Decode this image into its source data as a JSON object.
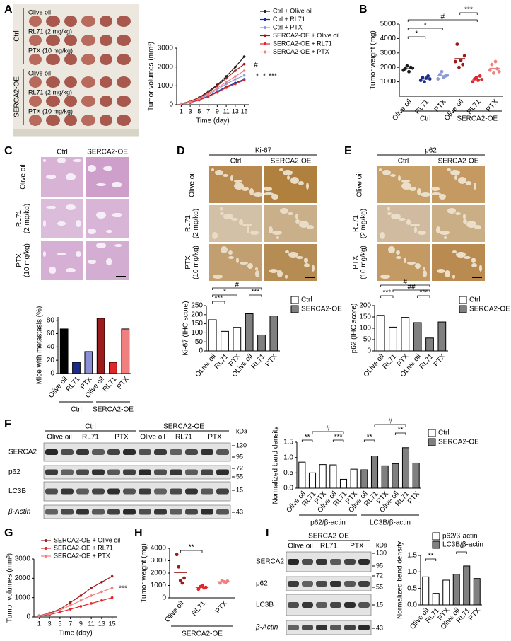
{
  "panel_labels": [
    "A",
    "B",
    "C",
    "D",
    "E",
    "F",
    "G",
    "H",
    "I"
  ],
  "figure_a": {
    "groups": [
      "Ctrl",
      "SERCA2-OE"
    ],
    "rows": [
      "Olive oil",
      "RL71 (2 mg/kg)",
      "PTX (10 mg/kg)"
    ]
  },
  "figure_c": {
    "columns": [
      "Ctrl",
      "SERCA2-OE"
    ],
    "rows": [
      [
        "Olive oil"
      ],
      [
        "RL71",
        "(2 mg/kg)"
      ],
      [
        "PTX",
        "(10 mg/kg)"
      ]
    ]
  },
  "figure_d": {
    "title": "Ki-67",
    "columns": [
      "Ctrl",
      "SERCA2-OE"
    ],
    "rows": [
      [
        "Olive oil"
      ],
      [
        "RL71",
        "(2 mg/kg)"
      ],
      [
        "PTX",
        "(10 mg/kg)"
      ]
    ]
  },
  "figure_e": {
    "title": "p62",
    "columns": [
      "Ctrl",
      "SERCA2-OE"
    ],
    "rows": [
      [
        "Olive oil"
      ],
      [
        "RL71",
        "(2 mg/kg)"
      ],
      [
        "PTX",
        "(10 mg/kg)"
      ]
    ]
  },
  "blot_f": {
    "groups": [
      "Ctrl",
      "SERCA2-OE"
    ],
    "lanes": [
      "Olive oil",
      "RL71",
      "PTX",
      "Olive oil",
      "RL71",
      "PTX"
    ],
    "proteins": [
      "SERCA2",
      "p62",
      "LC3B",
      "β-Actin"
    ],
    "unit": "kDa",
    "markers": [
      130,
      95,
      72,
      55,
      15,
      43
    ]
  },
  "blot_i": {
    "groups": [
      "SERCA2-OE"
    ],
    "lanes": [
      "Olive oil",
      "RL71",
      "PTX"
    ],
    "proteins": [
      "SERCA2",
      "p62",
      "LC3B",
      "β-Actin"
    ],
    "unit": "kDa",
    "markers": [
      130,
      95,
      72,
      55,
      15,
      43
    ]
  },
  "chart_data": [
    {
      "type": "line",
      "y_label": "Tumor volumes (mm³)",
      "x_label": "Time (day)",
      "x": [
        1,
        3,
        5,
        7,
        9,
        11,
        13,
        15
      ],
      "xlim": [
        0,
        16
      ],
      "xticks": [
        1,
        3,
        5,
        7,
        9,
        11,
        13,
        15
      ],
      "ylim": [
        0,
        3000
      ],
      "yticks": [
        0,
        1000,
        2000,
        3000
      ],
      "annotations": [
        "#",
        "*",
        "*",
        "***"
      ],
      "series": [
        {
          "name": "Ctrl + Olive oil",
          "color": "#1a1a1a",
          "values": [
            50,
            180,
            380,
            700,
            1050,
            1500,
            2000,
            2550
          ]
        },
        {
          "name": "Ctrl + RL71",
          "color": "#1f2d8a",
          "values": [
            40,
            120,
            260,
            450,
            700,
            950,
            1150,
            1350
          ]
        },
        {
          "name": "Ctrl + PTX",
          "color": "#8c9bd6",
          "values": [
            45,
            140,
            300,
            520,
            800,
            1100,
            1350,
            1550
          ]
        },
        {
          "name": "SERCA2-OE + Olive oil",
          "color": "#9b1c1c",
          "values": [
            50,
            170,
            360,
            650,
            1000,
            1400,
            1800,
            2150
          ]
        },
        {
          "name": "SERCA2-OE + RL71",
          "color": "#e0262a",
          "values": [
            40,
            110,
            240,
            430,
            650,
            900,
            1100,
            1300
          ]
        },
        {
          "name": "SERCA2-OE + PTX",
          "color": "#f08080",
          "values": [
            45,
            150,
            330,
            580,
            880,
            1200,
            1500,
            1800
          ]
        }
      ]
    },
    {
      "type": "dot",
      "y_label": "Tumor weight (mg)",
      "categories": [
        "Olive oil",
        "RL71",
        "PTX",
        "Olive oil",
        "RL71",
        "PTX"
      ],
      "groups": [
        "Ctrl",
        "SERCA2-OE"
      ],
      "colors": [
        "#1a1a1a",
        "#1f2d8a",
        "#8c9bd6",
        "#9b1c1c",
        "#e0262a",
        "#f08080"
      ],
      "points": [
        [
          1800,
          1900,
          2100,
          1700,
          2000,
          1950
        ],
        [
          1100,
          1300,
          1000,
          1250,
          1400,
          1200
        ],
        [
          1200,
          1500,
          1700,
          1300,
          1400,
          1450
        ],
        [
          2400,
          3600,
          2000,
          2500,
          2200,
          2800
        ],
        [
          1000,
          1200,
          1300,
          1100,
          1400,
          1150
        ],
        [
          1800,
          2200,
          1600,
          2400,
          1900,
          1700
        ]
      ],
      "means": [
        1900,
        1200,
        1420,
        2600,
        1190,
        1930
      ],
      "ylim": [
        0,
        5000
      ],
      "yticks": [
        1000,
        2000,
        3000,
        4000,
        5000
      ],
      "annotations": [
        "#",
        "*",
        "*",
        "***"
      ]
    },
    {
      "type": "bar",
      "y_label": "Mice with metastasis (%)",
      "categories": [
        "Olive oil",
        "RL71",
        "PTX",
        "Olive oil",
        "RL71",
        "PTX"
      ],
      "groups": [
        "Ctrl",
        "SERCA2-OE"
      ],
      "values": [
        67,
        17,
        33,
        83,
        17,
        67
      ],
      "colors": [
        "#000000",
        "#1f2d8a",
        "#8c8fd6",
        "#9b1c1c",
        "#e0262a",
        "#f08080"
      ],
      "ylim": [
        0,
        85
      ],
      "yticks": [
        0,
        20,
        40,
        60,
        80
      ]
    },
    {
      "type": "bar",
      "y_label": "Ki-67 (IHC score)",
      "categories": [
        "OLive oil",
        "RL71",
        "PTX"
      ],
      "series": [
        {
          "name": "Ctrl",
          "color": "#ffffff",
          "values": [
            172,
            108,
            130
          ]
        },
        {
          "name": "SERCA2-OE",
          "color": "#808080",
          "values": [
            205,
            88,
            193
          ]
        }
      ],
      "ylim": [
        0,
        250
      ],
      "yticks": [
        0,
        50,
        100,
        150,
        200,
        250
      ],
      "annotations": [
        "#",
        "*",
        "***",
        "***"
      ]
    },
    {
      "type": "bar",
      "y_label": "p62 (IHC score)",
      "categories": [
        "OLive oil",
        "RL71",
        "PTX"
      ],
      "series": [
        {
          "name": "Ctrl",
          "color": "#ffffff",
          "values": [
            157,
            105,
            148
          ]
        },
        {
          "name": "SERCA2-OE",
          "color": "#808080",
          "values": [
            125,
            57,
            128
          ]
        }
      ],
      "ylim": [
        0,
        200
      ],
      "yticks": [
        0,
        50,
        100,
        150,
        200
      ],
      "annotations": [
        "#",
        "***",
        "##",
        "***"
      ]
    },
    {
      "type": "bar",
      "y_label": "Normalized band density",
      "categories": [
        "Olive oil",
        "RL71",
        "PTX",
        "Olive oil",
        "RL71",
        "PTX"
      ],
      "series": [
        {
          "name": "Ctrl",
          "color": "#ffffff",
          "values": [
            0.85,
            0.5,
            0.77,
            0.76,
            0.29,
            0.62
          ]
        },
        {
          "name": "SERCA2-OE",
          "color": "#808080",
          "values": [
            0.6,
            1.05,
            0.73,
            0.8,
            1.32,
            0.82
          ]
        }
      ],
      "group_labels": [
        "p62/β-actin",
        "LC3B/β-actin"
      ],
      "ylim": [
        0,
        1.5
      ],
      "yticks": [
        {
          "value": 0,
          "label": "0.0"
        },
        0.5,
        {
          "value": 1,
          "label": "1.0"
        },
        1.5
      ],
      "annotations": [
        "**",
        "#",
        "***",
        "**",
        "#",
        "**"
      ]
    },
    {
      "type": "line",
      "y_label": "Tumor volumes (mm³)",
      "x_label": "Time (day)",
      "x": [
        1,
        3,
        5,
        7,
        9,
        11,
        13,
        15
      ],
      "xlim": [
        0,
        16
      ],
      "xticks": [
        1,
        3,
        5,
        7,
        9,
        11,
        13,
        15
      ],
      "ylim": [
        0,
        3000
      ],
      "yticks": [
        0,
        1000,
        2000,
        3000
      ],
      "annotations": [
        "***"
      ],
      "series": [
        {
          "name": "SERCA2-OE + Olive oil",
          "color": "#9b1c1c",
          "values": [
            60,
            200,
            400,
            750,
            1100,
            1500,
            1800,
            2100
          ]
        },
        {
          "name": "SERCA2-OE + RL71",
          "color": "#e0262a",
          "values": [
            40,
            120,
            250,
            400,
            550,
            700,
            850,
            1000
          ]
        },
        {
          "name": "SERCA2-OE + PTX",
          "color": "#f08080",
          "values": [
            50,
            170,
            350,
            600,
            850,
            1100,
            1300,
            1500
          ]
        }
      ]
    },
    {
      "type": "dot",
      "y_label": "Tumor weight (mg)",
      "categories": [
        "Olive oil",
        "RL71",
        "PTX"
      ],
      "groups": [
        "SERCA2-OE"
      ],
      "colors": [
        "#9b1c1c",
        "#e0262a",
        "#f08080"
      ],
      "points": [
        [
          3500,
          2500,
          1400,
          1200,
          1600
        ],
        [
          700,
          900,
          1000,
          800,
          850
        ],
        [
          1200,
          1400,
          1300,
          1250,
          1350
        ]
      ],
      "means": [
        2050,
        850,
        1300
      ],
      "ylim": [
        0,
        4000
      ],
      "yticks": [
        0,
        1000,
        2000,
        3000,
        4000
      ],
      "annotations": [
        "**"
      ]
    },
    {
      "type": "bar",
      "y_label": "Normalized band density",
      "categories": [
        "Olive oil",
        "RL71",
        "PTX"
      ],
      "series": [
        {
          "name": "p62/β-actin",
          "color": "#ffffff",
          "values": [
            0.85,
            0.35,
            0.75
          ]
        },
        {
          "name": "LC3B/β-actin",
          "color": "#808080",
          "values": [
            0.93,
            1.18,
            0.8
          ]
        }
      ],
      "ylim": [
        0,
        1.5
      ],
      "yticks": [
        {
          "value": 0,
          "label": "0.0"
        },
        0.5,
        {
          "value": 1,
          "label": "1.0"
        },
        1.5
      ],
      "annotations": [
        "**",
        "*"
      ]
    }
  ]
}
